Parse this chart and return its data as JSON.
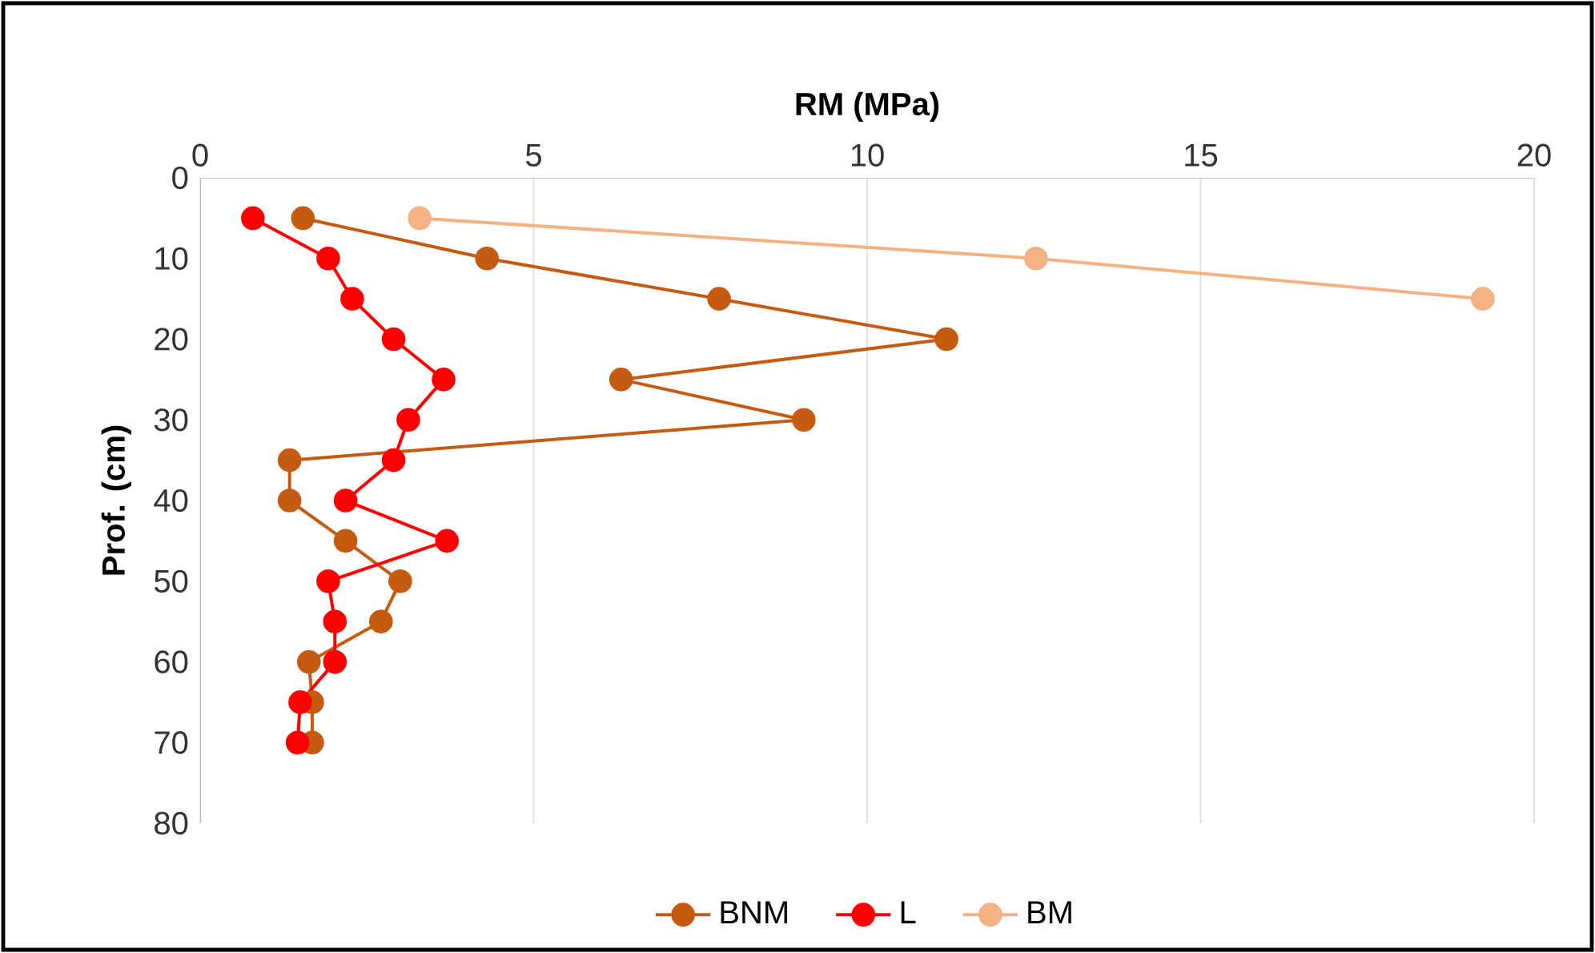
{
  "chart_data": {
    "type": "line",
    "xlabel": "RM (MPa)",
    "ylabel": "Prof. (cm)",
    "xlim": [
      0,
      20
    ],
    "xticks": [
      0,
      5,
      10,
      15,
      20
    ],
    "ylim": [
      80,
      0
    ],
    "yticks": [
      0,
      10,
      20,
      30,
      40,
      50,
      60,
      70,
      80
    ],
    "grid": "x",
    "legend": "bottom",
    "marker": "circle",
    "series": [
      {
        "name": "BNM",
        "color": "#c55a11",
        "x": [
          1.54,
          4.3,
          7.78,
          11.19,
          6.31,
          9.05,
          1.34,
          1.34,
          2.18,
          3.0,
          2.71,
          1.63,
          1.68,
          1.68
        ],
        "values": [
          5,
          10,
          15,
          20,
          25,
          30,
          35,
          40,
          45,
          50,
          55,
          60,
          65,
          70
        ]
      },
      {
        "name": "L",
        "color": "#ff0000",
        "x": [
          0.79,
          1.92,
          2.28,
          2.9,
          3.65,
          3.12,
          2.9,
          2.18,
          3.7,
          1.92,
          2.02,
          2.02,
          1.5,
          1.46
        ],
        "values": [
          5,
          10,
          15,
          20,
          25,
          30,
          35,
          40,
          45,
          50,
          55,
          60,
          65,
          70
        ]
      },
      {
        "name": "BM",
        "color": "#f4b183",
        "x": [
          3.29,
          12.53,
          19.23
        ],
        "values": [
          5,
          10,
          15
        ]
      }
    ]
  }
}
